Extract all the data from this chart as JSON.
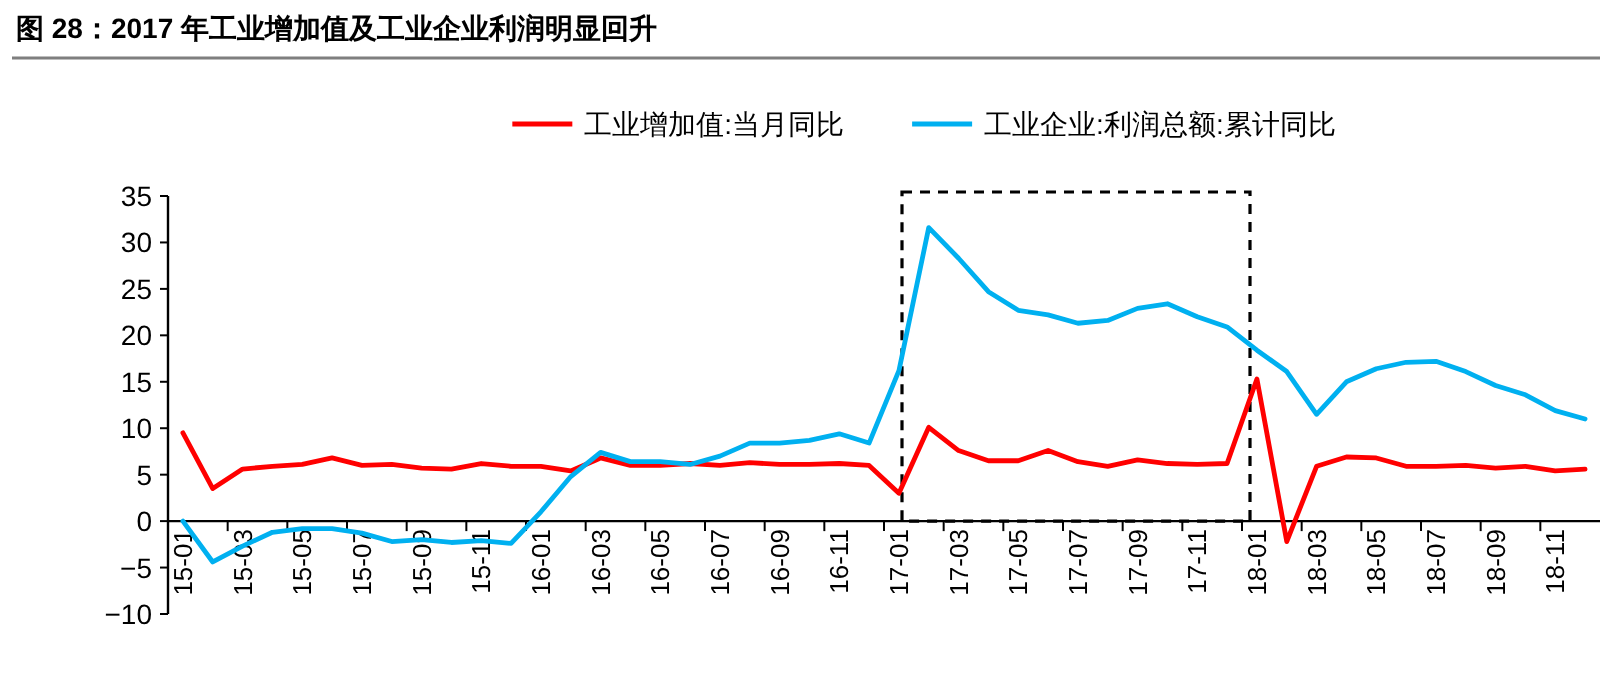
{
  "chart_data": {
    "type": "line",
    "title": "图 28：2017 年工业增加值及工业企业利润明显回升",
    "categories": [
      "15-01",
      null,
      "15-03",
      null,
      "15-05",
      null,
      "15-07",
      null,
      "15-09",
      null,
      "15-11",
      null,
      "16-01",
      null,
      "16-03",
      null,
      "16-05",
      null,
      "16-07",
      null,
      "16-09",
      null,
      "16-11",
      null,
      "17-01",
      null,
      "17-03",
      null,
      "17-05",
      null,
      "17-07",
      null,
      "17-09",
      null,
      "17-11",
      null,
      "18-01",
      null,
      "18-03",
      null,
      "18-05",
      null,
      "18-07",
      null,
      "18-09",
      null,
      "18-11",
      null
    ],
    "series": [
      {
        "name": "工业增加值:当月同比",
        "color": "#ff0000",
        "values": [
          9.5,
          3.5,
          5.6,
          5.9,
          6.1,
          6.8,
          6.0,
          6.1,
          5.7,
          5.6,
          6.2,
          5.9,
          5.9,
          5.4,
          6.8,
          6.0,
          6.0,
          6.2,
          6.0,
          6.3,
          6.1,
          6.1,
          6.2,
          6.0,
          3.0,
          10.1,
          7.6,
          6.5,
          6.5,
          7.6,
          6.4,
          5.9,
          6.6,
          6.2,
          6.1,
          6.2,
          15.3,
          -2.2,
          5.9,
          6.9,
          6.8,
          5.9,
          5.9,
          6.0,
          5.7,
          5.9,
          5.4,
          5.6
        ]
      },
      {
        "name": "工业企业:利润总额:累计同比",
        "color": "#00b0f0",
        "values": [
          0.0,
          -4.4,
          -2.7,
          -1.2,
          -0.8,
          -0.8,
          -1.3,
          -2.2,
          -2.0,
          -2.3,
          -2.1,
          -2.4,
          1.0,
          4.8,
          7.4,
          6.4,
          6.4,
          6.1,
          7.0,
          8.4,
          8.4,
          8.7,
          9.4,
          8.4,
          16.2,
          31.6,
          28.3,
          24.7,
          22.7,
          22.2,
          21.3,
          21.6,
          22.9,
          23.4,
          22.0,
          20.9,
          18.4,
          16.1,
          11.5,
          15.0,
          16.4,
          17.1,
          17.2,
          16.1,
          14.6,
          13.6,
          11.9,
          11.0
        ]
      }
    ],
    "ylim": [
      -10,
      35
    ],
    "yticks": [
      -10,
      -5,
      0,
      5,
      10,
      15,
      20,
      25,
      30,
      35
    ],
    "legend": "top"
  }
}
